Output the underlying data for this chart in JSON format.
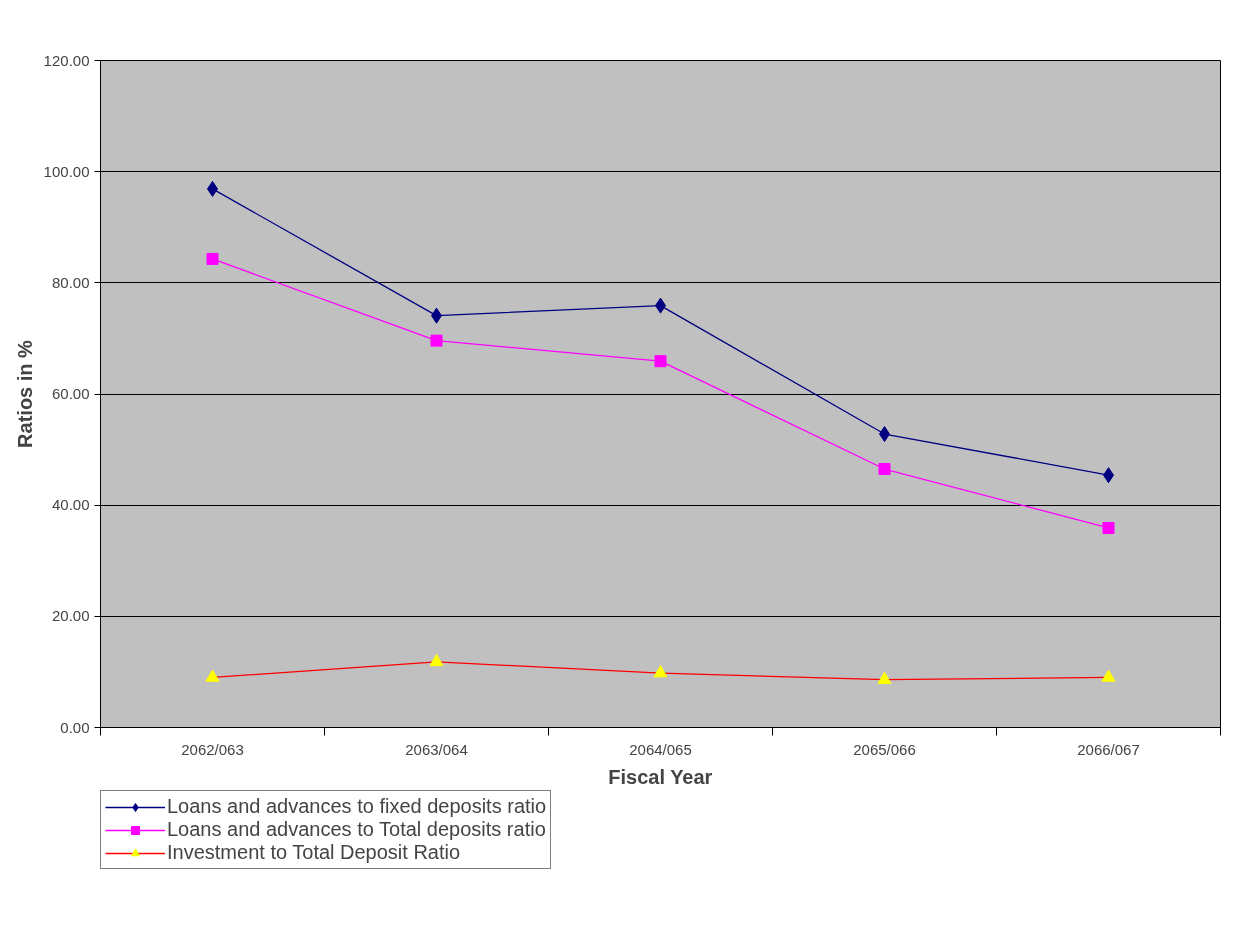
{
  "chart_data": {
    "type": "line",
    "xlabel": "Fiscal Year",
    "ylabel": "Ratios in %",
    "categories": [
      "2062/063",
      "2063/064",
      "2064/065",
      "2065/066",
      "2066/067"
    ],
    "series": [
      {
        "name": "Loans and advances to fixed deposits ratio",
        "color": "#000080",
        "marker": "diamond",
        "values": [
          96.9,
          74.1,
          75.9,
          52.8,
          45.4
        ]
      },
      {
        "name": "Loans and advances to Total deposits ratio",
        "color": "#ff00ff",
        "marker": "square",
        "values": [
          84.3,
          69.6,
          65.9,
          46.5,
          35.9
        ]
      },
      {
        "name": "Investment to Total Deposit Ratio",
        "color": "#ff0000",
        "colors": [
          "#ffff00",
          "#ffff00",
          "#ffff00",
          "#ffff00",
          "#ffff00"
        ],
        "marker": "triangle",
        "values": [
          9.0,
          11.8,
          9.8,
          8.6,
          9.0
        ]
      }
    ],
    "ylim": [
      0,
      120
    ],
    "yticks": [
      {
        "value": 0,
        "label": "0.00"
      },
      {
        "value": 20,
        "label": "20.00"
      },
      {
        "value": 40,
        "label": "40.00"
      },
      {
        "value": 60,
        "label": "60.00"
      },
      {
        "value": 80,
        "label": "80.00"
      },
      {
        "value": 100,
        "label": "100.00"
      },
      {
        "value": 120,
        "label": "120.00"
      }
    ],
    "grid": "y",
    "legend": "bottom left",
    "line_style": "solid"
  }
}
